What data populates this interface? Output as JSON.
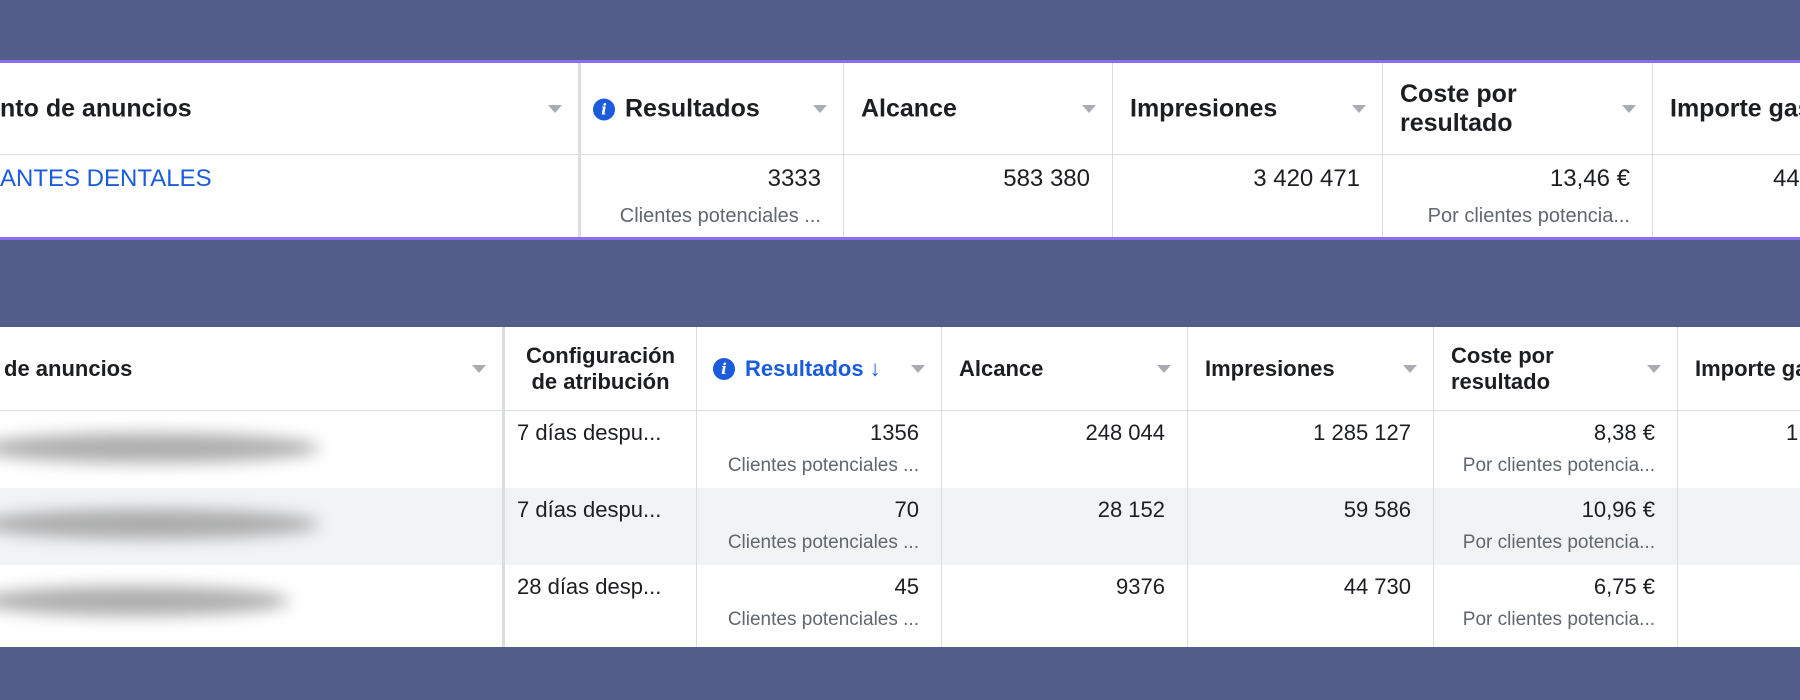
{
  "top_table": {
    "columns": [
      {
        "key": "campaign",
        "label": "nto de anuncios"
      },
      {
        "key": "results",
        "label": "Resultados"
      },
      {
        "key": "reach",
        "label": "Alcance"
      },
      {
        "key": "impressions",
        "label": "Impresiones"
      },
      {
        "key": "cost",
        "label": "Coste por resultado"
      },
      {
        "key": "spent",
        "label": "Importe gas"
      }
    ],
    "row": {
      "campaign": "ANTES DENTALES",
      "results": "3333",
      "results_sub": "Clientes potenciales ...",
      "reach": "583 380",
      "impressions": "3 420 471",
      "cost": "13,46 €",
      "cost_sub": "Por clientes potencia...",
      "spent": "44"
    }
  },
  "bottom_table": {
    "columns": [
      {
        "key": "ad",
        "label": "de anuncios"
      },
      {
        "key": "attribution",
        "label": "Configuración de atribución"
      },
      {
        "key": "results",
        "label": "Resultados",
        "sort": "↓"
      },
      {
        "key": "reach",
        "label": "Alcance"
      },
      {
        "key": "impressions",
        "label": "Impresiones"
      },
      {
        "key": "cost",
        "label": "Coste por resultado"
      },
      {
        "key": "spent",
        "label": "Importe ga"
      }
    ],
    "rows": [
      {
        "attribution": "7 días despu...",
        "results": "1356",
        "results_sub": "Clientes potenciales ...",
        "reach": "248 044",
        "impressions": "1 285 127",
        "cost": "8,38 €",
        "cost_sub": "Por clientes potencia...",
        "spent": "1"
      },
      {
        "attribution": "7 días despu...",
        "results": "70",
        "results_sub": "Clientes potenciales ...",
        "reach": "28 152",
        "impressions": "59 586",
        "cost": "10,96 €",
        "cost_sub": "Por clientes potencia...",
        "spent": ""
      },
      {
        "attribution": "28 días desp...",
        "results": "45",
        "results_sub": "Clientes potenciales ...",
        "reach": "9376",
        "impressions": "44 730",
        "cost": "6,75 €",
        "cost_sub": "Por clientes potencia...",
        "spent": ""
      }
    ]
  },
  "colors": {
    "background": "#525d8a",
    "accent_border": "#8b6ef0",
    "link_blue": "#1a5cdb",
    "row_stripe": "#f2f3f5"
  }
}
